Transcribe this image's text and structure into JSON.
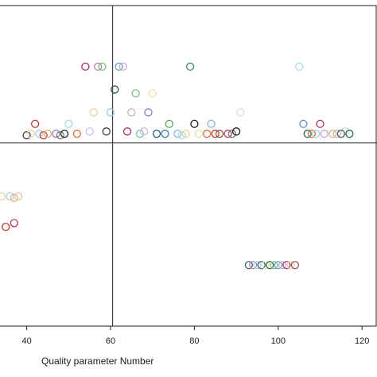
{
  "chart_data": {
    "type": "scatter",
    "title": "",
    "xlabel": "Quality parameter Number",
    "ylabel": "",
    "x_ticks": [
      40,
      60,
      80,
      100,
      120
    ],
    "xlim": [
      33.5,
      120
    ],
    "ylim": [
      -3.4,
      0.8
    ],
    "grid": false,
    "legend": "none",
    "reference_lines": {
      "x": 60.5,
      "y": -1.0
    },
    "marker": "open-circle",
    "points": [
      {
        "x": 54,
        "y": 0,
        "color": "#b0306e"
      },
      {
        "x": 57,
        "y": 0,
        "color": "#c87dab"
      },
      {
        "x": 58,
        "y": 0,
        "color": "#77c277"
      },
      {
        "x": 62,
        "y": 0,
        "color": "#5aa6b8"
      },
      {
        "x": 63,
        "y": 0,
        "color": "#c7a6d9"
      },
      {
        "x": 79,
        "y": 0,
        "color": "#3d8b6b"
      },
      {
        "x": 105,
        "y": 0,
        "color": "#aed8e6"
      },
      {
        "x": 61,
        "y": -0.3,
        "color": "#2b5747"
      },
      {
        "x": 66,
        "y": -0.35,
        "color": "#7fbf7f"
      },
      {
        "x": 70,
        "y": -0.35,
        "color": "#f4e2a3"
      },
      {
        "x": 56,
        "y": -0.6,
        "color": "#f0d29a"
      },
      {
        "x": 60,
        "y": -0.6,
        "color": "#9cc4e4"
      },
      {
        "x": 65,
        "y": -0.6,
        "color": "#b9b9b9"
      },
      {
        "x": 69,
        "y": -0.6,
        "color": "#8e7bbf"
      },
      {
        "x": 91,
        "y": -0.6,
        "color": "#cde8f0"
      },
      {
        "x": 42,
        "y": -0.75,
        "color": "#c0392b"
      },
      {
        "x": 50,
        "y": -0.75,
        "color": "#a6dbe8"
      },
      {
        "x": 74,
        "y": -0.75,
        "color": "#5aa860"
      },
      {
        "x": 80,
        "y": -0.75,
        "color": "#1e1e1e"
      },
      {
        "x": 84,
        "y": -0.75,
        "color": "#8cb4d4"
      },
      {
        "x": 106,
        "y": -0.75,
        "color": "#5f8fd9"
      },
      {
        "x": 110,
        "y": -0.75,
        "color": "#b5385d"
      },
      {
        "x": 116,
        "y": -0.85,
        "color": "#c5e8d0"
      },
      {
        "x": 40,
        "y": -0.9,
        "color": "#3a3a3a"
      },
      {
        "x": 41,
        "y": -0.88,
        "color": "#f2d3a2"
      },
      {
        "x": 43,
        "y": -0.88,
        "color": "#9fd3e3"
      },
      {
        "x": 44,
        "y": -0.9,
        "color": "#c0392b"
      },
      {
        "x": 45,
        "y": -0.88,
        "color": "#e8b07a"
      },
      {
        "x": 47,
        "y": -0.88,
        "color": "#8a7fbf"
      },
      {
        "x": 48,
        "y": -0.9,
        "color": "#777777"
      },
      {
        "x": 49,
        "y": -0.88,
        "color": "#2f2f2f"
      },
      {
        "x": 52,
        "y": -0.88,
        "color": "#e06c3c"
      },
      {
        "x": 55,
        "y": -0.85,
        "color": "#c7c7e8"
      },
      {
        "x": 59,
        "y": -0.85,
        "color": "#444444"
      },
      {
        "x": 64,
        "y": -0.85,
        "color": "#b0306e"
      },
      {
        "x": 67,
        "y": -0.88,
        "color": "#78c4b4"
      },
      {
        "x": 68,
        "y": -0.85,
        "color": "#d9b3d9"
      },
      {
        "x": 71,
        "y": -0.88,
        "color": "#2f5f7f"
      },
      {
        "x": 73,
        "y": -0.88,
        "color": "#3a7fa8"
      },
      {
        "x": 76,
        "y": -0.88,
        "color": "#8fb7d9"
      },
      {
        "x": 77,
        "y": -0.9,
        "color": "#a6dbe8"
      },
      {
        "x": 78,
        "y": -0.88,
        "color": "#f0d29a"
      },
      {
        "x": 81,
        "y": -0.88,
        "color": "#d9e8a6"
      },
      {
        "x": 83,
        "y": -0.88,
        "color": "#e06c3c"
      },
      {
        "x": 85,
        "y": -0.88,
        "color": "#c0392b"
      },
      {
        "x": 86,
        "y": -0.88,
        "color": "#8a5a3a"
      },
      {
        "x": 88,
        "y": -0.88,
        "color": "#b5385d"
      },
      {
        "x": 89,
        "y": -0.88,
        "color": "#7a7a7a"
      },
      {
        "x": 90,
        "y": -0.85,
        "color": "#1e1e1e"
      },
      {
        "x": 107,
        "y": -0.88,
        "color": "#2d6a4f"
      },
      {
        "x": 108,
        "y": -0.88,
        "color": "#e06c3c"
      },
      {
        "x": 109,
        "y": -0.88,
        "color": "#9fd3e3"
      },
      {
        "x": 111,
        "y": -0.88,
        "color": "#c7a6d9"
      },
      {
        "x": 113,
        "y": -0.88,
        "color": "#e8b07a"
      },
      {
        "x": 114,
        "y": -0.88,
        "color": "#b9b9b9"
      },
      {
        "x": 115,
        "y": -0.88,
        "color": "#5a5a5a"
      },
      {
        "x": 117,
        "y": -0.88,
        "color": "#2d6a4f"
      },
      {
        "x": 34,
        "y": -1.7,
        "color": "#f0d29a"
      },
      {
        "x": 36,
        "y": -1.7,
        "color": "#9fd3e3"
      },
      {
        "x": 37,
        "y": -1.72,
        "color": "#e8b07a"
      },
      {
        "x": 38,
        "y": -1.7,
        "color": "#d9c7a6"
      },
      {
        "x": 35,
        "y": -2.1,
        "color": "#c0392b"
      },
      {
        "x": 37,
        "y": -2.05,
        "color": "#b5385d"
      },
      {
        "x": 93,
        "y": -2.6,
        "color": "#3a5f7f"
      },
      {
        "x": 94,
        "y": -2.6,
        "color": "#c87dab"
      },
      {
        "x": 95,
        "y": -2.6,
        "color": "#9fd3e3"
      },
      {
        "x": 96,
        "y": -2.6,
        "color": "#2f5f7f"
      },
      {
        "x": 97,
        "y": -2.6,
        "color": "#d9e8a6"
      },
      {
        "x": 98,
        "y": -2.6,
        "color": "#2d6a4f"
      },
      {
        "x": 99,
        "y": -2.6,
        "color": "#7fbf7f"
      },
      {
        "x": 100,
        "y": -2.6,
        "color": "#5aa6b8"
      },
      {
        "x": 101,
        "y": -2.6,
        "color": "#c7a6d9"
      },
      {
        "x": 102,
        "y": -2.6,
        "color": "#b0306e"
      },
      {
        "x": 103,
        "y": -2.6,
        "color": "#f0d29a"
      },
      {
        "x": 104,
        "y": -2.6,
        "color": "#8a5a6e"
      }
    ]
  }
}
